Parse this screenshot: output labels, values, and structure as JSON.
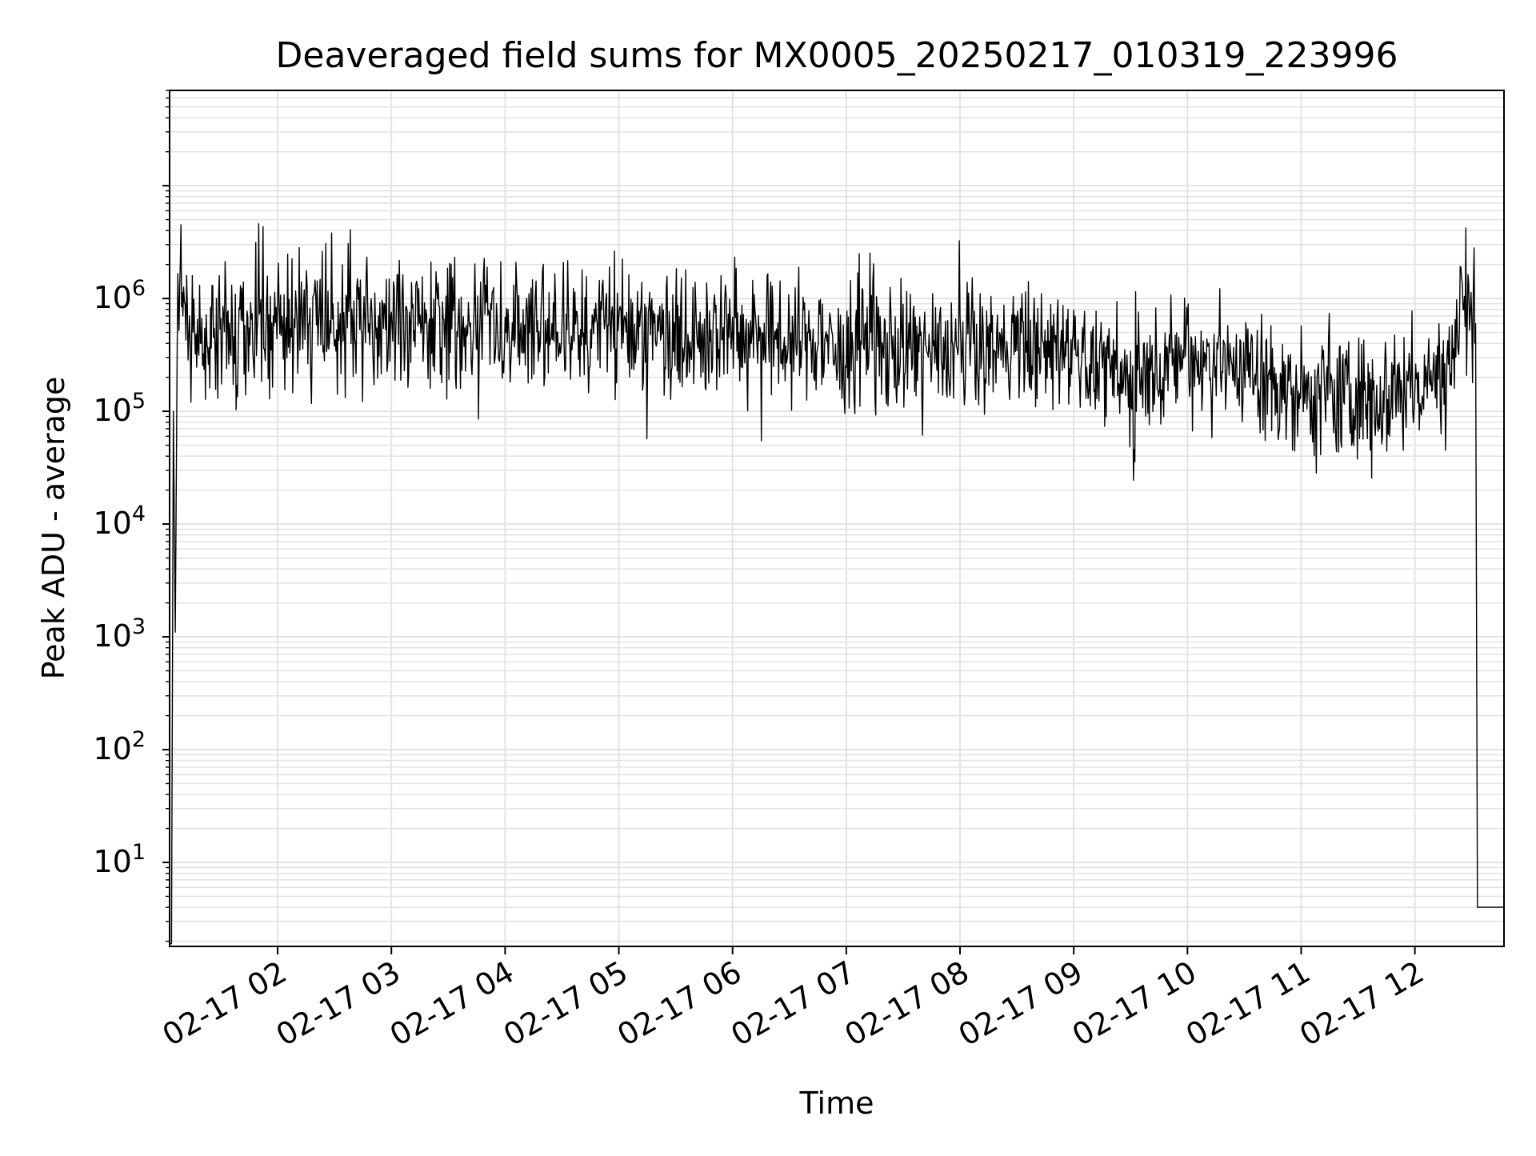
{
  "chart_data": {
    "type": "line",
    "title": "Deaveraged field sums for MX0005_20250217_010319_223996",
    "xlabel": "Time",
    "ylabel": "Peak ADU - average",
    "y_scale": "log",
    "ylim": [
      1.8,
      70000000
    ],
    "xlim": [
      "2025-02-17 01:03",
      "2025-02-17 12:47"
    ],
    "grid": true,
    "line_color": "#000000",
    "x_ticks": [
      "02-17 02",
      "02-17 03",
      "02-17 04",
      "02-17 05",
      "02-17 06",
      "02-17 07",
      "02-17 08",
      "02-17 09",
      "02-17 10",
      "02-17 11",
      "02-17 12"
    ],
    "x_tick_times": [
      "2025-02-17 02:00",
      "2025-02-17 03:00",
      "2025-02-17 04:00",
      "2025-02-17 05:00",
      "2025-02-17 06:00",
      "2025-02-17 07:00",
      "2025-02-17 08:00",
      "2025-02-17 09:00",
      "2025-02-17 10:00",
      "2025-02-17 11:00",
      "2025-02-17 12:00"
    ],
    "y_ticks": [
      {
        "value": 10,
        "base": "10",
        "exp": "1"
      },
      {
        "value": 100,
        "base": "10",
        "exp": "2"
      },
      {
        "value": 1000,
        "base": "10",
        "exp": "3"
      },
      {
        "value": 10000,
        "base": "10",
        "exp": "4"
      },
      {
        "value": 100000,
        "base": "10",
        "exp": "5"
      },
      {
        "value": 1000000,
        "base": "10",
        "exp": "6"
      }
    ],
    "series": [
      {
        "x": [
          "2025-02-17 01:03",
          "2025-02-17 01:04",
          "2025-02-17 01:05",
          "2025-02-17 01:06",
          "2025-02-17 01:07",
          "2025-02-17 01:08",
          "2025-02-17 01:09",
          "2025-02-17 01:10",
          "2025-02-17 01:12",
          "2025-02-17 01:15",
          "2025-02-17 01:20",
          "2025-02-17 01:30",
          "2025-02-17 01:45",
          "2025-02-17 02:00",
          "2025-02-17 02:30",
          "2025-02-17 03:00",
          "2025-02-17 03:30",
          "2025-02-17 04:00",
          "2025-02-17 04:30",
          "2025-02-17 05:00",
          "2025-02-17 05:30",
          "2025-02-17 06:00",
          "2025-02-17 06:30",
          "2025-02-17 07:00",
          "2025-02-17 07:30",
          "2025-02-17 08:00",
          "2025-02-17 08:30",
          "2025-02-17 09:00",
          "2025-02-17 09:30",
          "2025-02-17 10:00",
          "2025-02-17 10:30",
          "2025-02-17 11:00",
          "2025-02-17 11:30",
          "2025-02-17 11:55",
          "2025-02-17 12:05",
          "2025-02-17 12:15",
          "2025-02-17 12:22",
          "2025-02-17 12:25",
          "2025-02-17 12:28",
          "2025-02-17 12:30",
          "2025-02-17 12:32",
          "2025-02-17 12:33",
          "2025-02-17 12:35",
          "2025-02-17 12:40",
          "2025-02-17 12:47"
        ],
        "y": [
          1.9,
          1.9,
          100000,
          1100,
          400000,
          1300000,
          1600000,
          1000000,
          700000,
          400000,
          450000,
          500000,
          550000,
          600000,
          580000,
          620000,
          600000,
          580000,
          560000,
          560000,
          520000,
          480000,
          450000,
          380000,
          360000,
          330000,
          400000,
          330000,
          170000,
          330000,
          250000,
          130000,
          130000,
          160000,
          170000,
          210000,
          400000,
          1100000,
          850000,
          800000,
          600000,
          4,
          4,
          4,
          4
        ]
      }
    ]
  }
}
